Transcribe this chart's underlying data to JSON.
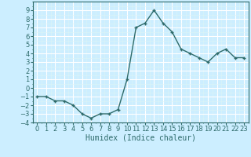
{
  "x": [
    0,
    1,
    2,
    3,
    4,
    5,
    6,
    7,
    8,
    9,
    10,
    11,
    12,
    13,
    14,
    15,
    16,
    17,
    18,
    19,
    20,
    21,
    22,
    23
  ],
  "y": [
    -1,
    -1,
    -1.5,
    -1.5,
    -2,
    -3,
    -3.5,
    -3,
    -3,
    -2.5,
    1,
    7,
    7.5,
    9,
    7.5,
    6.5,
    4.5,
    4,
    3.5,
    3,
    4,
    4.5,
    3.5,
    3.5
  ],
  "line_color": "#2e6b6b",
  "marker": "+",
  "marker_color": "#2e6b6b",
  "bg_color": "#cceeff",
  "grid_major_color": "#ffffff",
  "grid_minor_color": "#ddf5f5",
  "xlabel": "Humidex (Indice chaleur)",
  "ylim": [
    -4,
    10
  ],
  "xlim": [
    -0.5,
    23.5
  ],
  "yticks": [
    -4,
    -3,
    -2,
    -1,
    0,
    1,
    2,
    3,
    4,
    5,
    6,
    7,
    8,
    9
  ],
  "xticks": [
    0,
    1,
    2,
    3,
    4,
    5,
    6,
    7,
    8,
    9,
    10,
    11,
    12,
    13,
    14,
    15,
    16,
    17,
    18,
    19,
    20,
    21,
    22,
    23
  ],
  "xlabel_fontsize": 7,
  "tick_fontsize": 6,
  "line_width": 1.0,
  "marker_size": 3
}
